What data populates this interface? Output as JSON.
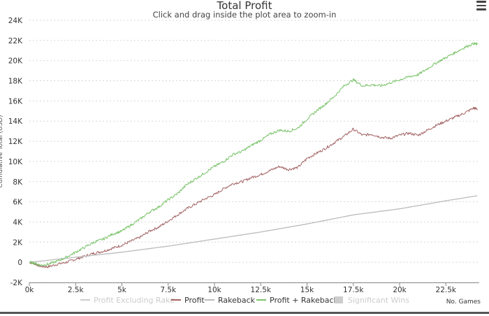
{
  "header": {
    "title": "Total Profit",
    "subtitle": "Click and drag inside the plot area to zoom-in"
  },
  "menu": {
    "icon": "hamburger-menu-icon"
  },
  "chart_data": {
    "type": "line",
    "title": "Total Profit",
    "subtitle": "Click and drag inside the plot area to zoom-in",
    "xlabel": "No. Games",
    "ylabel": "Cumulative Total (USD)",
    "xlim": [
      0,
      24300
    ],
    "ylim": [
      -2000,
      24000
    ],
    "x_tick_values": [
      0,
      2500,
      5000,
      7500,
      10000,
      12500,
      15000,
      17500,
      20000,
      22500
    ],
    "x_tick_labels": [
      "0k",
      "2.5k",
      "5k",
      "7.5k",
      "10k",
      "12.5k",
      "15k",
      "17.5k",
      "20k",
      "22.5k"
    ],
    "y_tick_values": [
      -2000,
      0,
      2000,
      4000,
      6000,
      8000,
      10000,
      12000,
      14000,
      16000,
      18000,
      20000,
      22000,
      24000
    ],
    "y_tick_labels": [
      "-2K",
      "0",
      "2K",
      "4K",
      "6K",
      "8K",
      "10K",
      "12K",
      "14K",
      "16K",
      "18K",
      "20K",
      "22K",
      "24K"
    ],
    "grid": true,
    "legend_position": "bottom",
    "series": [
      {
        "name": "Profit Excluding Rake",
        "color": "#cccccc",
        "visible": false,
        "x": [],
        "y": []
      },
      {
        "name": "Profit",
        "color": "#a46464",
        "visible": true,
        "x": [
          0,
          300,
          600,
          1000,
          1500,
          2000,
          2500,
          3000,
          3500,
          4000,
          4500,
          5000,
          5500,
          6000,
          6500,
          7000,
          7500,
          8000,
          8500,
          9000,
          9500,
          10000,
          10500,
          11000,
          11500,
          12000,
          12500,
          13000,
          13500,
          14000,
          14500,
          15000,
          15500,
          16000,
          16500,
          17000,
          17500,
          18000,
          18500,
          19000,
          19500,
          20000,
          20500,
          21000,
          21500,
          22000,
          22500,
          23000,
          23500,
          24000,
          24200
        ],
        "y": [
          0,
          -150,
          -400,
          -450,
          -200,
          0,
          300,
          600,
          900,
          1100,
          1400,
          1700,
          2100,
          2500,
          3100,
          3500,
          4100,
          4700,
          5300,
          5800,
          6300,
          6700,
          7300,
          7800,
          8000,
          8400,
          8700,
          9100,
          9500,
          9200,
          9400,
          10300,
          10800,
          11300,
          11900,
          12500,
          13200,
          12600,
          12700,
          12400,
          12300,
          12600,
          12800,
          12600,
          13100,
          13600,
          14000,
          14400,
          14800,
          15300,
          15200
        ]
      },
      {
        "name": "Rakeback",
        "color": "#bbbbbb",
        "visible": true,
        "x": [
          0,
          2500,
          5000,
          7500,
          10000,
          12500,
          15000,
          17500,
          20000,
          22500,
          24200
        ],
        "y": [
          0,
          500,
          1000,
          1600,
          2300,
          3000,
          3800,
          4700,
          5300,
          6100,
          6600
        ]
      },
      {
        "name": "Profit + Rakeback",
        "color": "#7ac36a",
        "visible": true,
        "x": [
          0,
          300,
          600,
          1000,
          1500,
          2000,
          2500,
          3000,
          3500,
          4000,
          4500,
          5000,
          5500,
          6000,
          6500,
          7000,
          7500,
          8000,
          8500,
          9000,
          9500,
          10000,
          10500,
          11000,
          11500,
          12000,
          12500,
          13000,
          13500,
          14000,
          14500,
          15000,
          15500,
          16000,
          16500,
          17000,
          17500,
          18000,
          18500,
          19000,
          19500,
          20000,
          20500,
          21000,
          21500,
          22000,
          22500,
          23000,
          23500,
          24000,
          24200
        ],
        "y": [
          0,
          -100,
          -300,
          -200,
          100,
          500,
          1000,
          1500,
          2000,
          2300,
          2800,
          3100,
          3700,
          4300,
          5000,
          5500,
          6200,
          6800,
          7700,
          8300,
          8900,
          9500,
          10000,
          10700,
          11000,
          11600,
          12100,
          12700,
          13100,
          13000,
          13300,
          14200,
          15000,
          15700,
          16500,
          17500,
          18100,
          17500,
          17600,
          17500,
          17800,
          18100,
          18400,
          18600,
          19200,
          19800,
          20300,
          20800,
          21300,
          21700,
          21600
        ]
      },
      {
        "name": "Significant Wins",
        "color": "#cccccc",
        "visible": false,
        "x": [],
        "y": []
      }
    ]
  }
}
